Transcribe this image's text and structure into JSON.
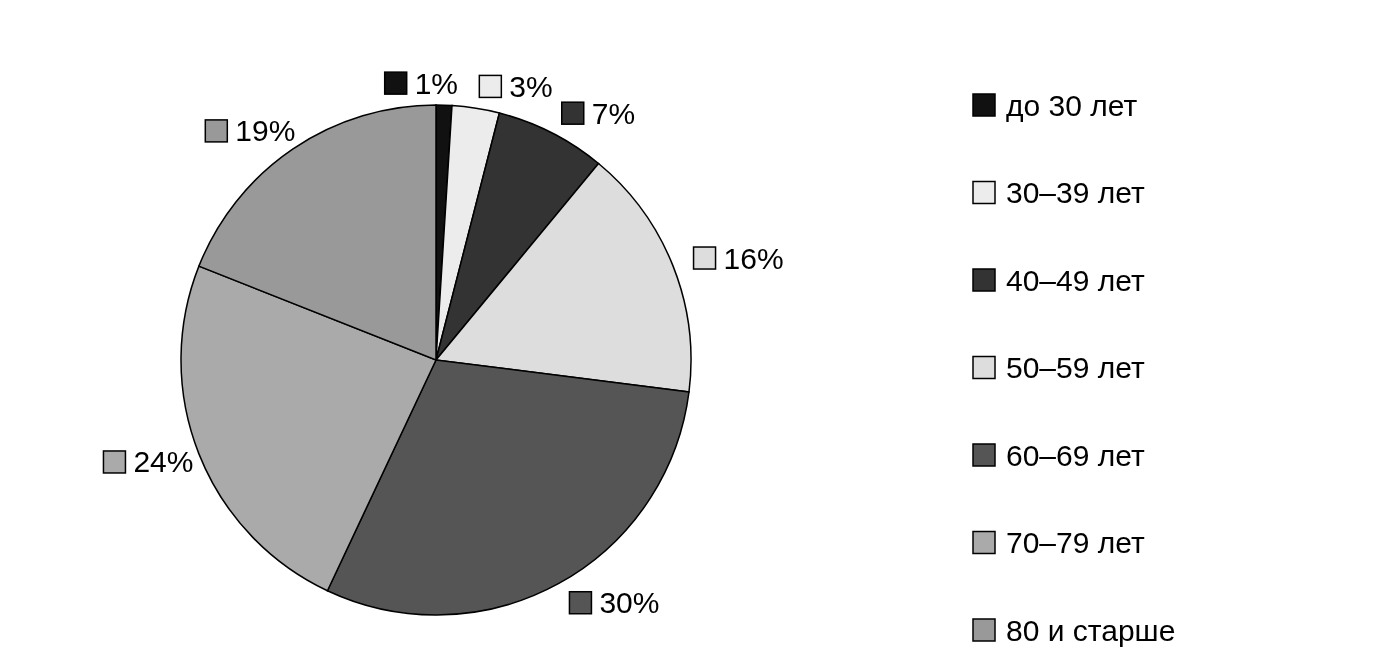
{
  "chart_data": {
    "type": "pie",
    "categories": [
      "до 30 лет",
      "30–39 лет",
      "40–49 лет",
      "50–59 лет",
      "60–69 лет",
      "70–79 лет",
      "80 и старше"
    ],
    "values": [
      1,
      3,
      7,
      16,
      30,
      24,
      19
    ],
    "colors": [
      "#111111",
      "#ececec",
      "#333333",
      "#dddddd",
      "#555555",
      "#aaaaaa",
      "#999999"
    ],
    "value_labels": [
      "1%",
      "3%",
      "7%",
      "16%",
      "30%",
      "24%",
      "19%"
    ],
    "legend": "right"
  }
}
